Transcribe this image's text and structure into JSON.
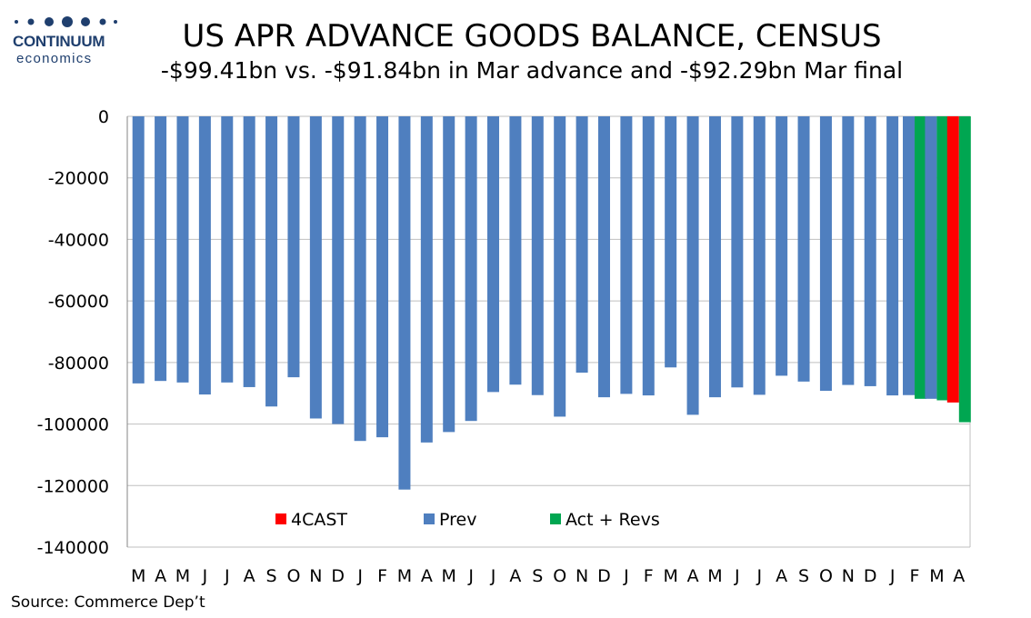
{
  "logo": {
    "brand": "CONTINUUM",
    "sub": "economics"
  },
  "title": "US APR ADVANCE GOODS BALANCE, CENSUS",
  "subtitle": "-$99.41bn vs. -$91.84bn in Mar advance and -$92.29bn Mar final",
  "source": "Source: Commerce Dep’t",
  "colors": {
    "prev": "#4f7fbf",
    "act": "#00a651",
    "fcast": "#ff0000"
  },
  "chart_data": {
    "type": "bar",
    "ylim": [
      -140000,
      0
    ],
    "yticks": [
      0,
      -20000,
      -40000,
      -60000,
      -80000,
      -100000,
      -120000,
      -140000
    ],
    "grid": true,
    "legend_placement": "bottom-center",
    "categories": [
      "M",
      "A",
      "M",
      "J",
      "J",
      "A",
      "S",
      "O",
      "N",
      "D",
      "J",
      "F",
      "M",
      "A",
      "M",
      "J",
      "J",
      "A",
      "S",
      "O",
      "N",
      "D",
      "J",
      "F",
      "M",
      "A",
      "M",
      "J",
      "J",
      "A",
      "S",
      "O",
      "N",
      "D",
      "J",
      "F",
      "M",
      "A"
    ],
    "series": [
      {
        "name": "4CAST",
        "values": [
          null,
          null,
          null,
          null,
          null,
          null,
          null,
          null,
          null,
          null,
          null,
          null,
          null,
          null,
          null,
          null,
          null,
          null,
          null,
          null,
          null,
          null,
          null,
          null,
          null,
          null,
          null,
          null,
          null,
          null,
          null,
          null,
          null,
          null,
          null,
          null,
          null,
          -93000
        ]
      },
      {
        "name": "Prev",
        "values": [
          -86800,
          -86000,
          -86500,
          -90400,
          -86500,
          -88000,
          -94300,
          -84800,
          -98200,
          -100000,
          -105500,
          -104300,
          -121300,
          -106000,
          -102600,
          -99000,
          -89600,
          -87200,
          -90600,
          -97600,
          -83300,
          -91300,
          -90200,
          -90700,
          -81600,
          -97000,
          -91300,
          -88100,
          -90500,
          -84300,
          -86200,
          -89200,
          -87300,
          -87700,
          -90700,
          -90600,
          -91800,
          null
        ]
      },
      {
        "name": "Act + Revs",
        "values": [
          null,
          null,
          null,
          null,
          null,
          null,
          null,
          null,
          null,
          null,
          null,
          null,
          null,
          null,
          null,
          null,
          null,
          null,
          null,
          null,
          null,
          null,
          null,
          null,
          null,
          null,
          null,
          null,
          null,
          null,
          null,
          null,
          null,
          null,
          null,
          -91800,
          -92290,
          -99410
        ]
      }
    ]
  }
}
